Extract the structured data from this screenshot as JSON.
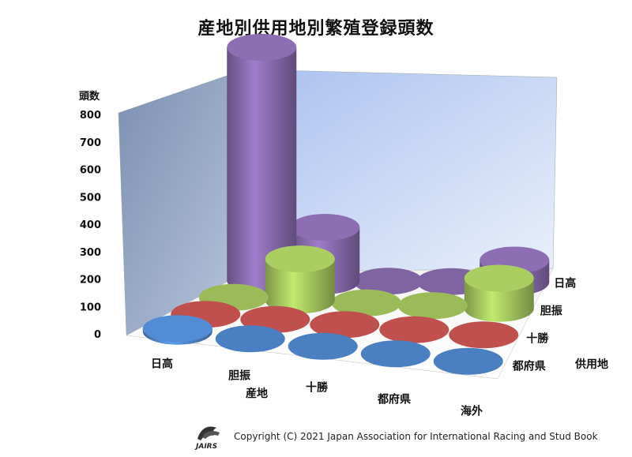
{
  "chart_data": {
    "type": "bar",
    "title": "産地別供用地別繁殖登録頭数",
    "ylabel": "頭数",
    "xlabel": "産地",
    "zlabel": "供用地",
    "ylim": [
      0,
      800
    ],
    "yticks": [
      "0",
      "100",
      "200",
      "300",
      "400",
      "500",
      "600",
      "700",
      "800"
    ],
    "categories": [
      "日高",
      "胆振",
      "十勝",
      "都府県",
      "海外"
    ],
    "series": [
      {
        "name": "都府県",
        "color": "#4a7fc1",
        "values": [
          10,
          0,
          0,
          0,
          0
        ]
      },
      {
        "name": "十勝",
        "color": "#c0504d",
        "values": [
          0,
          0,
          0,
          0,
          0
        ]
      },
      {
        "name": "胆振",
        "color": "#9bbb59",
        "values": [
          0,
          150,
          0,
          0,
          110
        ]
      },
      {
        "name": "日高",
        "color": "#8064a2",
        "values": [
          850,
          195,
          0,
          0,
          80
        ]
      }
    ],
    "grid": false
  },
  "footer": {
    "copyright": "Copyright (C) 2021 Japan Association for International Racing and Stud Book",
    "logo_text": "JAIRS"
  }
}
